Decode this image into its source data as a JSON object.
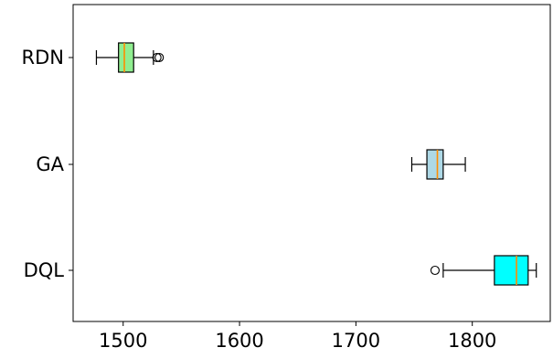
{
  "chart_data": {
    "type": "boxplot",
    "orientation": "horizontal",
    "title": "",
    "xlabel": "",
    "ylabel": "",
    "xlim": [
      1457,
      1867
    ],
    "xticks": [
      1500,
      1600,
      1700,
      1800
    ],
    "xtick_labels": [
      "1500",
      "1600",
      "1700",
      "1800"
    ],
    "grid": false,
    "series": [
      {
        "name": "RDN",
        "color": "#90EE90",
        "whisker_low": 1477,
        "q1": 1496,
        "median": 1501,
        "q3": 1509,
        "whisker_high": 1526,
        "outliers": [
          1529,
          1531
        ]
      },
      {
        "name": "GA",
        "color": "#ADD8E6",
        "whisker_low": 1748,
        "q1": 1761,
        "median": 1770,
        "q3": 1775,
        "whisker_high": 1794,
        "outliers": []
      },
      {
        "name": "DQL",
        "color": "#00FFFF",
        "whisker_low": 1775,
        "q1": 1819,
        "median": 1838,
        "q3": 1848,
        "whisker_high": 1855,
        "outliers": [
          1768
        ]
      }
    ],
    "median_color": "#FF8C00"
  }
}
